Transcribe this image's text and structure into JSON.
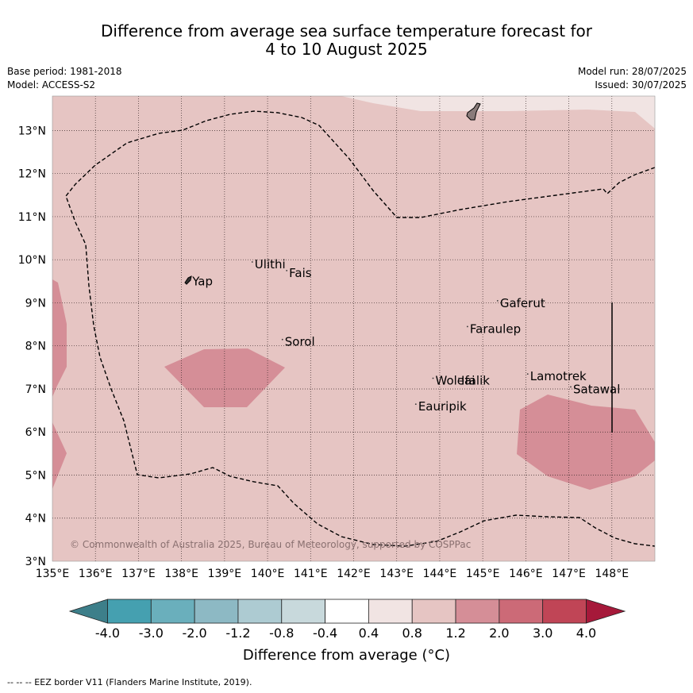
{
  "title": {
    "line1": "Difference from average sea surface temperature forecast for",
    "line2": "4 to 10 August 2025"
  },
  "meta": {
    "base_period": "Base period: 1981-2018",
    "model": "Model: ACCESS-S2",
    "model_run": "Model run: 28/07/2025",
    "issued": "Issued: 30/07/2025"
  },
  "map": {
    "lat_labels": [
      "13°N",
      "12°N",
      "11°N",
      "10°N",
      "9°N",
      "8°N",
      "7°N",
      "6°N",
      "5°N",
      "4°N",
      "3°N"
    ],
    "lon_labels": [
      "135°E",
      "136°E",
      "137°E",
      "138°E",
      "139°E",
      "140°E",
      "141°E",
      "142°E",
      "143°E",
      "144°E",
      "145°E",
      "146°E",
      "147°E",
      "148°E"
    ],
    "places": [
      {
        "name": "Yap",
        "lon": 138.25,
        "lat": 9.4
      },
      {
        "name": "Ulithi",
        "lon": 139.7,
        "lat": 9.8
      },
      {
        "name": "Fais",
        "lon": 140.5,
        "lat": 9.6
      },
      {
        "name": "Sorol",
        "lon": 140.4,
        "lat": 8.0
      },
      {
        "name": "Gaferut",
        "lon": 145.4,
        "lat": 8.9
      },
      {
        "name": "Faraulep",
        "lon": 144.7,
        "lat": 8.3
      },
      {
        "name": "Woleai",
        "lon": 143.9,
        "lat": 7.1
      },
      {
        "name": "Ifalik",
        "lon": 144.5,
        "lat": 7.1
      },
      {
        "name": "Lamotrek",
        "lon": 146.1,
        "lat": 7.2
      },
      {
        "name": "Satawal",
        "lon": 147.1,
        "lat": 6.9
      },
      {
        "name": "Eauripik",
        "lon": 143.5,
        "lat": 6.5
      }
    ],
    "copyright": "© Commonwealth of Australia 2025, Bureau of Meteorology, supported by COSPPac"
  },
  "colorbar": {
    "labels": [
      "-4.0",
      "-3.0",
      "-2.0",
      "-1.2",
      "-0.8",
      "-0.4",
      "0.4",
      "0.8",
      "1.2",
      "2.0",
      "3.0",
      "4.0"
    ],
    "colors": [
      "#3d7f8a",
      "#45a0b0",
      "#6aafbc",
      "#8db9c4",
      "#adcbd2",
      "#c8d9dc",
      "#ffffff",
      "#f1e4e3",
      "#e6c5c3",
      "#d58e97",
      "#cc6a77",
      "#c04556",
      "#a6193a"
    ],
    "label": "Difference from average (°C)"
  },
  "colors": {
    "background_fill": "#e6c5c3",
    "warm_fill": "#d58e97",
    "light_fill": "#f1e4e3"
  },
  "footer": "-- -- -- EEZ border V11 (Flanders Marine Institute, 2019)."
}
